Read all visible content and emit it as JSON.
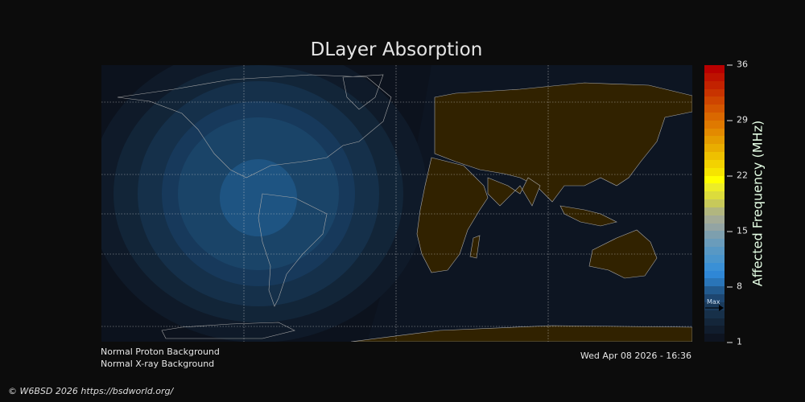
{
  "title": "DLayer Absorption",
  "colorbar": {
    "label": "Affected Frequency (MHz)",
    "ticks": [
      "36",
      "29",
      "22",
      "15",
      "8",
      "1"
    ],
    "range": [
      1,
      36
    ],
    "max_marker_label": "Max",
    "max_marker_value": 5,
    "colors": [
      "#0e1420",
      "#111d2d",
      "#14263a",
      "#173049",
      "#1a3a5a",
      "#1d4670",
      "#225a8e",
      "#2a75b8",
      "#2f87d6",
      "#3a90d6",
      "#4a95cc",
      "#5898c4",
      "#6a9cbb",
      "#7d9fae",
      "#93a4a3",
      "#a3ab97",
      "#b1b67f",
      "#c7c95a",
      "#dcdc3c",
      "#ecec28",
      "#ffff00",
      "#f6e400",
      "#f3d200",
      "#eec000",
      "#e9ad00",
      "#e59c00",
      "#e38a00",
      "#df7900",
      "#da6800",
      "#d45600",
      "#ce4500",
      "#c83300",
      "#c22200",
      "#bd1200",
      "#b80000"
    ]
  },
  "info": {
    "proton": "Normal Proton Background",
    "xray": "Normal X-ray Background",
    "timestamp": "Wed Apr 08 2026 - 16:36"
  },
  "copyright": "© W6BSD 2026 https://bsdworld.org/",
  "map": {
    "ocean_color": "#0d1522",
    "land_day_color": "#312200",
    "coast_color": "#a8a8a8",
    "absorption_levels": [
      "#0f1a29",
      "#122538",
      "#15304a",
      "#17395b",
      "#1a4468",
      "#1e5482"
    ]
  }
}
